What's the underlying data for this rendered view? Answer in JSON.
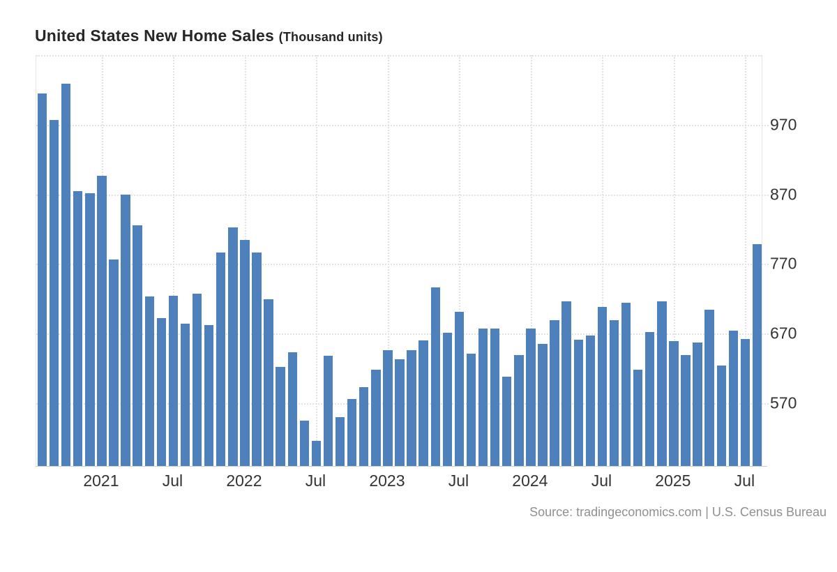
{
  "header": {
    "title": "United States New Home Sales",
    "subtitle": "(Thousand units)"
  },
  "footer": {
    "source": "Source: tradingeconomics.com | U.S. Census Bureau"
  },
  "colors": {
    "bar": "#4e80bc",
    "grid": "#e2e2e2",
    "axis_line": "#cccccc",
    "tick_label": "#333333",
    "title": "#262626",
    "source_text": "#909090",
    "background": "#ffffff"
  },
  "chart_data": {
    "type": "bar",
    "title": "United States New Home Sales",
    "subtitle": "(Thousand units)",
    "ylabel": "Thousand units",
    "legend_position": "none",
    "grid": "dotted",
    "ylim": [
      480,
      1070
    ],
    "yticks": [
      570,
      670,
      770,
      870,
      970
    ],
    "x": [
      "Aug 2020",
      "Sep 2020",
      "Oct 2020",
      "Nov 2020",
      "Dec 2020",
      "Jan 2021",
      "Feb 2021",
      "Mar 2021",
      "Apr 2021",
      "May 2021",
      "Jun 2021",
      "Jul 2021",
      "Aug 2021",
      "Sep 2021",
      "Oct 2021",
      "Nov 2021",
      "Dec 2021",
      "Jan 2022",
      "Feb 2022",
      "Mar 2022",
      "Apr 2022",
      "May 2022",
      "Jun 2022",
      "Jul 2022",
      "Aug 2022",
      "Sep 2022",
      "Oct 2022",
      "Nov 2022",
      "Dec 2022",
      "Jan 2023",
      "Feb 2023",
      "Mar 2023",
      "Apr 2023",
      "May 2023",
      "Jun 2023",
      "Jul 2023",
      "Aug 2023",
      "Sep 2023",
      "Oct 2023",
      "Nov 2023",
      "Dec 2023",
      "Jan 2024",
      "Feb 2024",
      "Mar 2024",
      "Apr 2024",
      "May 2024",
      "Jun 2024",
      "Jul 2024",
      "Aug 2024",
      "Sep 2024",
      "Oct 2024",
      "Nov 2024",
      "Dec 2024",
      "Jan 2025",
      "Feb 2025",
      "Mar 2025",
      "Apr 2025",
      "May 2025",
      "Jun 2025",
      "Jul 2025",
      "Aug 2025"
    ],
    "values": [
      1015,
      977,
      1029,
      875,
      872,
      897,
      777,
      870,
      826,
      723,
      692,
      724,
      684,
      727,
      682,
      787,
      823,
      805,
      787,
      719,
      622,
      643,
      545,
      516,
      638,
      550,
      576,
      593,
      618,
      646,
      633,
      646,
      660,
      736,
      671,
      701,
      641,
      677,
      677,
      608,
      639,
      677,
      655,
      689,
      716,
      661,
      667,
      708,
      689,
      714,
      618,
      672,
      716,
      659,
      639,
      657,
      704,
      624,
      674,
      662,
      799
    ],
    "xticks": [
      {
        "index": 5,
        "label": "2021"
      },
      {
        "index": 11,
        "label": "Jul"
      },
      {
        "index": 17,
        "label": "2022"
      },
      {
        "index": 23,
        "label": "Jul"
      },
      {
        "index": 29,
        "label": "2023"
      },
      {
        "index": 35,
        "label": "Jul"
      },
      {
        "index": 41,
        "label": "2024"
      },
      {
        "index": 47,
        "label": "Jul"
      },
      {
        "index": 53,
        "label": "2025"
      },
      {
        "index": 59,
        "label": "Jul"
      }
    ]
  }
}
